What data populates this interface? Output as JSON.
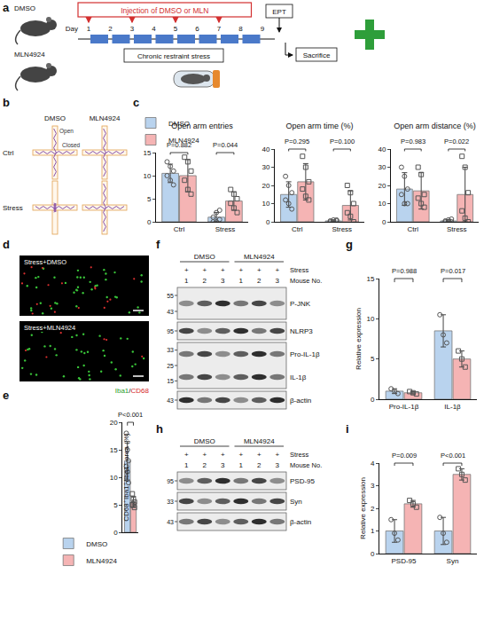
{
  "panel_letters": [
    "a",
    "b",
    "c",
    "d",
    "e",
    "f",
    "g",
    "h",
    "i"
  ],
  "protocol": {
    "mice": [
      "DMSO",
      "MLN4924"
    ],
    "injection": "Injection of DMSO or MLN",
    "day_label": "Day",
    "days": [
      1,
      2,
      3,
      4,
      5,
      6,
      7,
      8,
      9
    ],
    "injection_days": [
      1,
      3,
      5,
      7
    ],
    "stress_days": [
      1,
      2,
      3,
      4,
      5,
      6,
      7,
      8
    ],
    "stress": "Chronic restraint stress",
    "test": "EPT",
    "end": "Sacrifice"
  },
  "maze": {
    "columns": [
      "DMSO",
      "MLN4924"
    ],
    "rows": [
      "Ctrl",
      "Stress"
    ],
    "arm_labels": [
      "Open",
      "Closed"
    ]
  },
  "staining": {
    "images": [
      "Stress+DMSO",
      "Stress+MLN4924"
    ],
    "stains": [
      "Iba1",
      "CD68"
    ],
    "separator": "/"
  },
  "blot_f": {
    "groups": [
      "DMSO",
      "MLN4924"
    ],
    "stress_label": "Stress",
    "stress_marks": [
      "+",
      "+",
      "+",
      "+",
      "+",
      "+"
    ],
    "mouse_label": "Mouse No.",
    "mice": [
      1,
      2,
      3,
      1,
      2,
      3
    ],
    "panels": [
      {
        "markers": [
          55,
          43
        ],
        "bands": [
          "P-JNK"
        ]
      },
      {
        "markers": [
          95
        ],
        "bands": [
          "NLRP3"
        ]
      },
      {
        "markers": [
          33,
          25,
          15
        ],
        "bands": [
          "Pro-IL-1β",
          "IL-1β"
        ]
      },
      {
        "markers": [
          43
        ],
        "bands": [
          "β-actin"
        ]
      }
    ]
  },
  "blot_h": {
    "groups": [
      "DMSO",
      "MLN4924"
    ],
    "stress_label": "Stress",
    "stress_marks": [
      "+",
      "+",
      "+",
      "+",
      "+",
      "+"
    ],
    "mouse_label": "Mouse No.",
    "mice": [
      1,
      2,
      3,
      1,
      2,
      3
    ],
    "panels": [
      {
        "markers": [
          95
        ],
        "bands": [
          "PSD-95"
        ]
      },
      {
        "markers": [
          33
        ],
        "bands": [
          "Syn"
        ]
      },
      {
        "markers": [
          43
        ],
        "bands": [
          "β-actin"
        ]
      }
    ]
  },
  "chart_data": [
    {
      "type": "bar",
      "title": "Open arm entries",
      "categories": [
        "Ctrl",
        "Stress"
      ],
      "legend": "top left",
      "grid": false,
      "ylim": [
        0,
        15
      ],
      "yticks": [
        0,
        5,
        10,
        15
      ],
      "series": [
        {
          "name": "DMSO",
          "color": "#b9d3ee",
          "marker": "circle",
          "values": [
            10.5,
            1.0
          ],
          "errors": [
            2.0,
            1.0
          ],
          "points": [
            [
              13,
              12,
              11,
              10,
              9,
              8
            ],
            [
              0,
              0,
              0.5,
              1,
              2,
              2.5
            ]
          ]
        },
        {
          "name": "MLN4924",
          "color": "#f5b4b4",
          "marker": "square",
          "values": [
            10,
            4.5
          ],
          "errors": [
            3.5,
            2.0
          ],
          "points": [
            [
              14,
              13,
              11,
              9,
              7,
              6
            ],
            [
              7,
              6,
              5,
              4,
              3,
              2
            ]
          ]
        }
      ],
      "p_values": [
        {
          "category": 0,
          "text": "P=0.882"
        },
        {
          "category": 1,
          "text": "P=0.044"
        }
      ]
    },
    {
      "type": "bar",
      "title": "Open arm time (%)",
      "categories": [
        "Ctrl",
        "Stress"
      ],
      "grid": false,
      "ylim": [
        0,
        40
      ],
      "yticks": [
        0,
        10,
        20,
        30,
        40
      ],
      "series": [
        {
          "name": "DMSO",
          "color": "#b9d3ee",
          "marker": "circle",
          "values": [
            15,
            0.5
          ],
          "errors": [
            7,
            0.5
          ],
          "points": [
            [
              25,
              20,
              16,
              12,
              10,
              7
            ],
            [
              0,
              0,
              0.5,
              0.5,
              1,
              1
            ]
          ]
        },
        {
          "name": "MLN4924",
          "color": "#f5b4b4",
          "marker": "square",
          "values": [
            22,
            9
          ],
          "errors": [
            10,
            8
          ],
          "points": [
            [
              36,
              30,
              22,
              18,
              14,
              12
            ],
            [
              20,
              16,
              10,
              5,
              3,
              0
            ]
          ]
        }
      ],
      "p_values": [
        {
          "category": 0,
          "text": "P=0.295"
        },
        {
          "category": 1,
          "text": "P=0.100"
        }
      ]
    },
    {
      "type": "bar",
      "title": "Open arm distance (%)",
      "categories": [
        "Ctrl",
        "Stress"
      ],
      "grid": false,
      "ylim": [
        0,
        40
      ],
      "yticks": [
        0,
        10,
        20,
        30,
        40
      ],
      "series": [
        {
          "name": "DMSO",
          "color": "#b9d3ee",
          "marker": "circle",
          "values": [
            18,
            0.5
          ],
          "errors": [
            9,
            0.7
          ],
          "points": [
            [
              30,
              25,
              18,
              15,
              10,
              10
            ],
            [
              0,
              0,
              0,
              0.5,
              1,
              1.5
            ]
          ]
        },
        {
          "name": "MLN4924",
          "color": "#f5b4b4",
          "marker": "square",
          "values": [
            17,
            15
          ],
          "errors": [
            10,
            15
          ],
          "points": [
            [
              30,
              26,
              15,
              13,
              10,
              8
            ],
            [
              36,
              30,
              16,
              6,
              2,
              0
            ]
          ]
        }
      ],
      "p_values": [
        {
          "category": 0,
          "text": "P=0.983"
        },
        {
          "category": 1,
          "text": "P=0.022"
        }
      ]
    },
    {
      "type": "bar",
      "y_label": "CD68⁺Iba1⁺/Iba1⁺ area (%)",
      "categories": [
        null
      ],
      "legend": "bottom",
      "grid": false,
      "tick_labels": "y",
      "ylim": [
        0,
        20
      ],
      "yticks": [
        0,
        5,
        10,
        15,
        20
      ],
      "series": [
        {
          "name": "DMSO",
          "color": "#b9d3ee",
          "marker": "circle",
          "values": [
            13
          ],
          "errors": [
            3.5
          ],
          "points": [
            [
              18,
              15,
              13,
              12,
              11,
              9
            ]
          ]
        },
        {
          "name": "MLN4924",
          "color": "#f5b4b4",
          "marker": "square",
          "values": [
            5.5
          ],
          "errors": [
            1.0
          ],
          "points": [
            [
              7,
              6,
              5.5,
              5,
              5,
              4.5
            ]
          ]
        }
      ],
      "p_values": [
        {
          "category": 0,
          "text": "P<0.001"
        }
      ]
    },
    {
      "type": "bar",
      "y_label": "Relative expression",
      "categories": [
        "Pro-IL-1β",
        "IL-1β"
      ],
      "grid": false,
      "ylim": [
        0,
        15
      ],
      "yticks": [
        0,
        5,
        10,
        15
      ],
      "series": [
        {
          "name": "DMSO",
          "color": "#b9d3ee",
          "marker": "circle",
          "values": [
            1.0,
            8.5
          ],
          "errors": [
            0.3,
            2.0
          ],
          "points": [
            [
              1.3,
              1.0,
              0.7
            ],
            [
              10.5,
              8,
              7
            ]
          ]
        },
        {
          "name": "MLN4924",
          "color": "#f5b4b4",
          "marker": "square",
          "values": [
            0.8,
            5.0
          ],
          "errors": [
            0.15,
            1.0
          ],
          "points": [
            [
              0.95,
              0.8,
              0.65
            ],
            [
              6,
              5,
              4
            ]
          ]
        }
      ],
      "p_values": [
        {
          "category": 0,
          "text": "P=0.988"
        },
        {
          "category": 1,
          "text": "P=0.017"
        }
      ]
    },
    {
      "type": "bar",
      "y_label": "Relative expression",
      "categories": [
        "PSD-95",
        "Syn"
      ],
      "grid": false,
      "ylim": [
        0,
        4
      ],
      "yticks": [
        0,
        1,
        2,
        3,
        4
      ],
      "series": [
        {
          "name": "DMSO",
          "color": "#b9d3ee",
          "marker": "circle",
          "values": [
            1.0,
            1.0
          ],
          "errors": [
            0.5,
            0.6
          ],
          "points": [
            [
              1.5,
              0.9,
              0.6
            ],
            [
              1.6,
              0.9,
              0.5
            ]
          ]
        },
        {
          "name": "MLN4924",
          "color": "#f5b4b4",
          "marker": "square",
          "values": [
            2.2,
            3.5
          ],
          "errors": [
            0.15,
            0.25
          ],
          "points": [
            [
              2.35,
              2.2,
              2.05
            ],
            [
              3.75,
              3.5,
              3.25
            ]
          ]
        }
      ],
      "p_values": [
        {
          "category": 0,
          "text": "P=0.009"
        },
        {
          "category": 1,
          "text": "P<0.001"
        }
      ]
    }
  ]
}
